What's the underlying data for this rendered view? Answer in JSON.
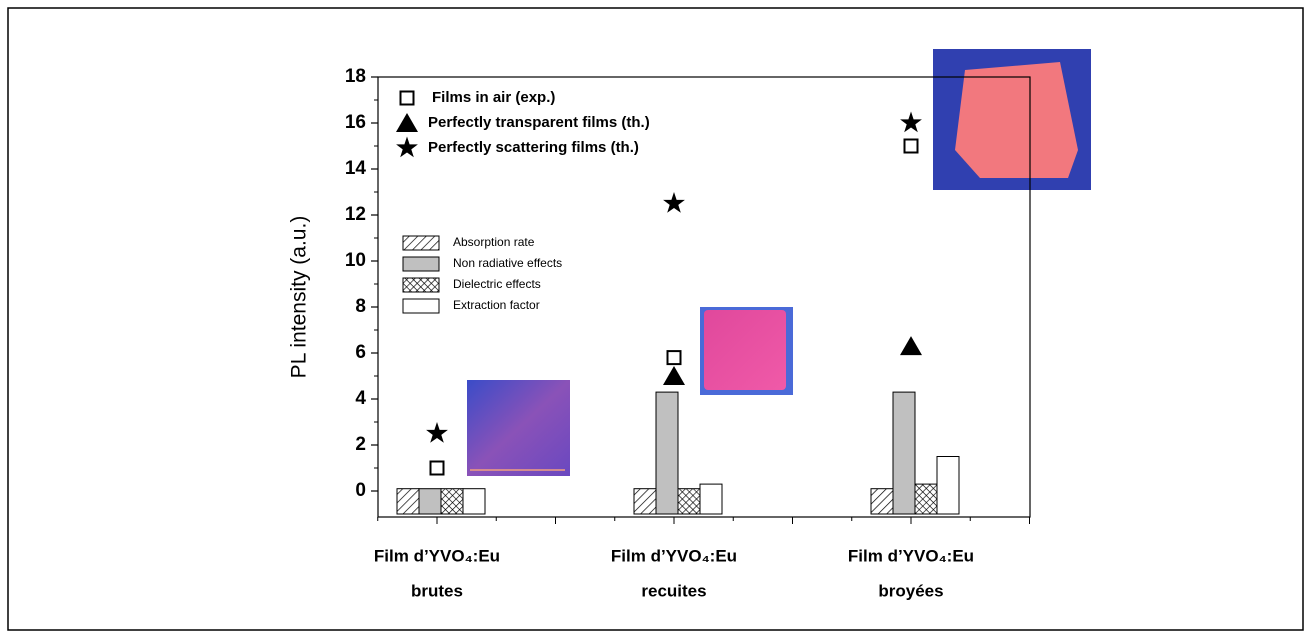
{
  "chart_data": {
    "type": "bar",
    "categories": [
      [
        "Film d’YVO₄:Eu",
        "brutes"
      ],
      [
        "Film d’YVO₄:Eu",
        "recuites"
      ],
      [
        "Film d’YVO₄:Eu",
        "broyées"
      ]
    ],
    "y_label": "PL intensity (a.u.)",
    "ylim": [
      -1,
      18
    ],
    "yticks": [
      0,
      2,
      4,
      6,
      8,
      10,
      12,
      14,
      16,
      18
    ],
    "yticks_minor": [
      1,
      3,
      5,
      7,
      9,
      11,
      13,
      15,
      17
    ],
    "series": [
      {
        "name": "Absorption rate",
        "color": "#000000",
        "pattern": "hatch",
        "values": [
          0.1,
          0.1,
          0.1
        ]
      },
      {
        "name": "Non radiative effects",
        "color": "#c0c0c0",
        "pattern": "solid",
        "values": [
          0.1,
          4.3,
          4.3
        ]
      },
      {
        "name": "Dielectric effects",
        "color": "#000000",
        "pattern": "crosshatch",
        "values": [
          0.1,
          0.1,
          0.3
        ]
      },
      {
        "name": "Extraction factor",
        "color": "#ffffff",
        "pattern": "solid",
        "values": [
          0.1,
          0.3,
          1.5
        ]
      }
    ],
    "overlay": {
      "type": "scatter",
      "series": [
        {
          "name": "Films in air (exp.)",
          "marker": "square",
          "color": "#000000",
          "values": [
            1.0,
            5.8,
            15.0
          ]
        },
        {
          "name": "Perfectly transparent films (th.)",
          "marker": "triangle",
          "color": "#000000",
          "values": [
            null,
            5.0,
            6.3
          ]
        },
        {
          "name": "Perfectly scattering films (th.)",
          "marker": "star",
          "color": "#000000",
          "values": [
            2.5,
            12.5,
            16.0
          ]
        }
      ]
    }
  }
}
